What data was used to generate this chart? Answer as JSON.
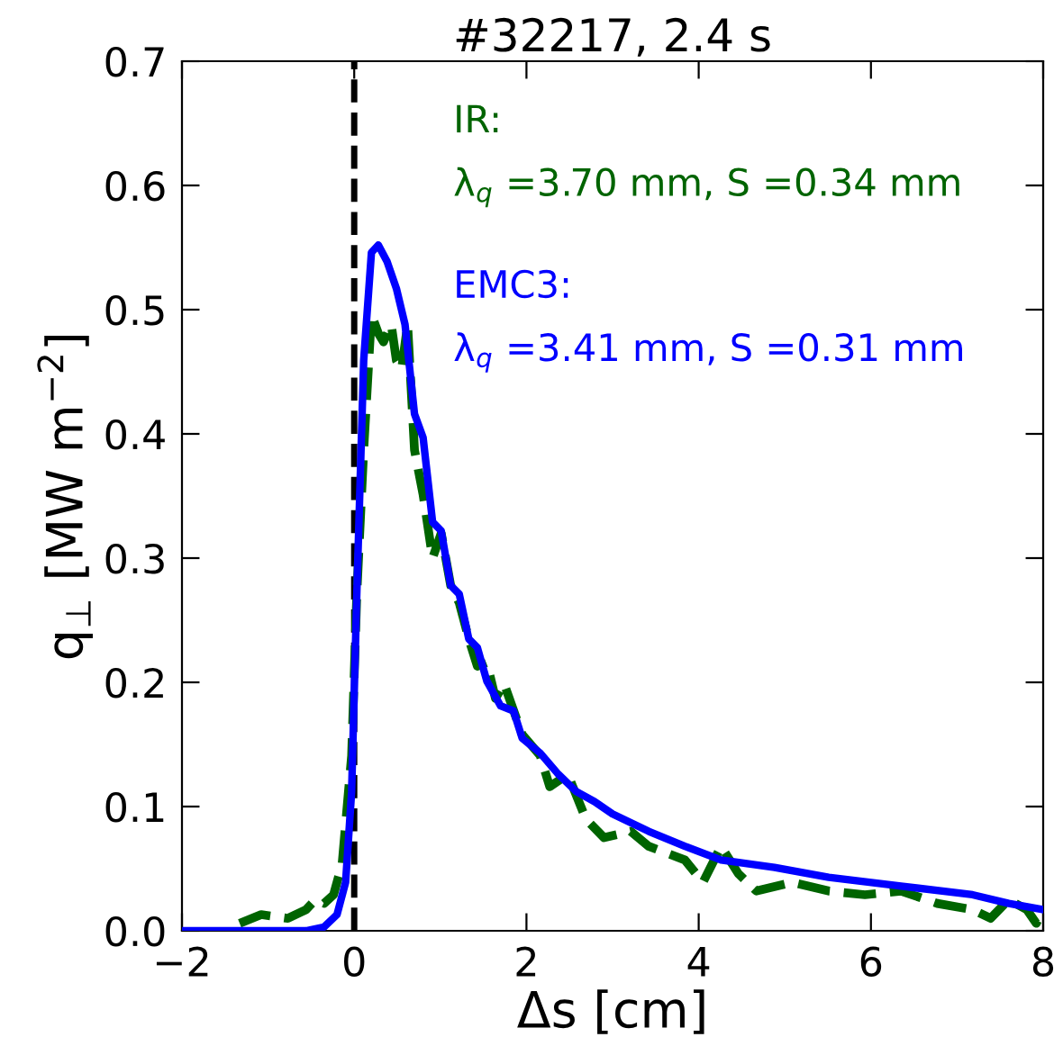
{
  "chart_data": {
    "type": "line",
    "title": "#32217, 2.4 s",
    "xlabel": "Δs [cm]",
    "ylabel": "q$_{⊥}$ [MW m$^{−2}$]",
    "xlim": [
      -2,
      8
    ],
    "xticks": [
      {
        "value": -2,
        "label": "−2"
      },
      0,
      2,
      4,
      6,
      8
    ],
    "ylim": [
      0,
      0.7
    ],
    "yticks": [
      {
        "value": 0,
        "label": "0.0"
      },
      0.1,
      0.2,
      0.3,
      0.4,
      0.5,
      0.6,
      0.7
    ],
    "grid": false,
    "legend": false,
    "ref_lines": [
      {
        "axis": "x",
        "value": 0,
        "color": "#000000",
        "line_style": "dashed"
      }
    ],
    "annotations": [
      "IR:",
      "λ$_{q}$ =3.70 mm, S =0.34 mm",
      "EMC3:",
      "λ$_{q}$ =3.41 mm, S =0.31 mm"
    ],
    "series": [
      {
        "color": "#006400",
        "line_style": "dashed",
        "x": [
          -1.33,
          -1.08,
          -0.77,
          -0.56,
          -0.45,
          -0.35,
          -0.24,
          -0.14,
          -0.03,
          0.03,
          0.11,
          0.2,
          0.28,
          0.34,
          0.43,
          0.49,
          0.55,
          0.62,
          0.7,
          0.8,
          0.91,
          1.01,
          1.12,
          1.22,
          1.33,
          1.43,
          1.54,
          1.64,
          1.74,
          1.95,
          2.16,
          2.27,
          2.48,
          2.69,
          2.9,
          3.21,
          3.42,
          3.84,
          4.05,
          4.26,
          4.46,
          4.67,
          5.09,
          5.51,
          5.93,
          6.35,
          6.77,
          7.18,
          7.39,
          7.6,
          7.81,
          7.92,
          8.0
        ],
        "values": [
          0.006,
          0.013,
          0.01,
          0.017,
          0.025,
          0.022,
          0.029,
          0.054,
          0.141,
          0.271,
          0.387,
          0.496,
          0.481,
          0.474,
          0.488,
          0.459,
          0.452,
          0.488,
          0.387,
          0.351,
          0.3,
          0.32,
          0.278,
          0.264,
          0.235,
          0.213,
          0.216,
          0.187,
          0.199,
          0.158,
          0.141,
          0.116,
          0.126,
          0.09,
          0.075,
          0.08,
          0.068,
          0.057,
          0.039,
          0.068,
          0.046,
          0.032,
          0.039,
          0.032,
          0.029,
          0.032,
          0.022,
          0.017,
          0.01,
          0.025,
          0.017,
          0.006,
          0.017
        ]
      },
      {
        "color": "#0000ff",
        "line_style": "solid",
        "x": [
          -2.0,
          -0.56,
          -0.35,
          -0.2,
          -0.1,
          -0.03,
          0.03,
          0.11,
          0.2,
          0.28,
          0.38,
          0.49,
          0.59,
          0.7,
          0.8,
          0.91,
          1.01,
          1.12,
          1.22,
          1.33,
          1.43,
          1.54,
          1.7,
          1.85,
          1.95,
          2.16,
          2.37,
          2.58,
          2.79,
          3.0,
          3.42,
          3.84,
          4.26,
          4.88,
          5.51,
          6.35,
          7.18,
          7.6,
          8.0
        ],
        "values": [
          0,
          0,
          0.003,
          0.013,
          0.039,
          0.112,
          0.271,
          0.459,
          0.546,
          0.552,
          0.539,
          0.517,
          0.488,
          0.416,
          0.397,
          0.329,
          0.322,
          0.278,
          0.271,
          0.235,
          0.228,
          0.201,
          0.181,
          0.177,
          0.155,
          0.143,
          0.126,
          0.112,
          0.104,
          0.094,
          0.08,
          0.068,
          0.057,
          0.051,
          0.043,
          0.036,
          0.029,
          0.022,
          0.017
        ]
      }
    ]
  }
}
